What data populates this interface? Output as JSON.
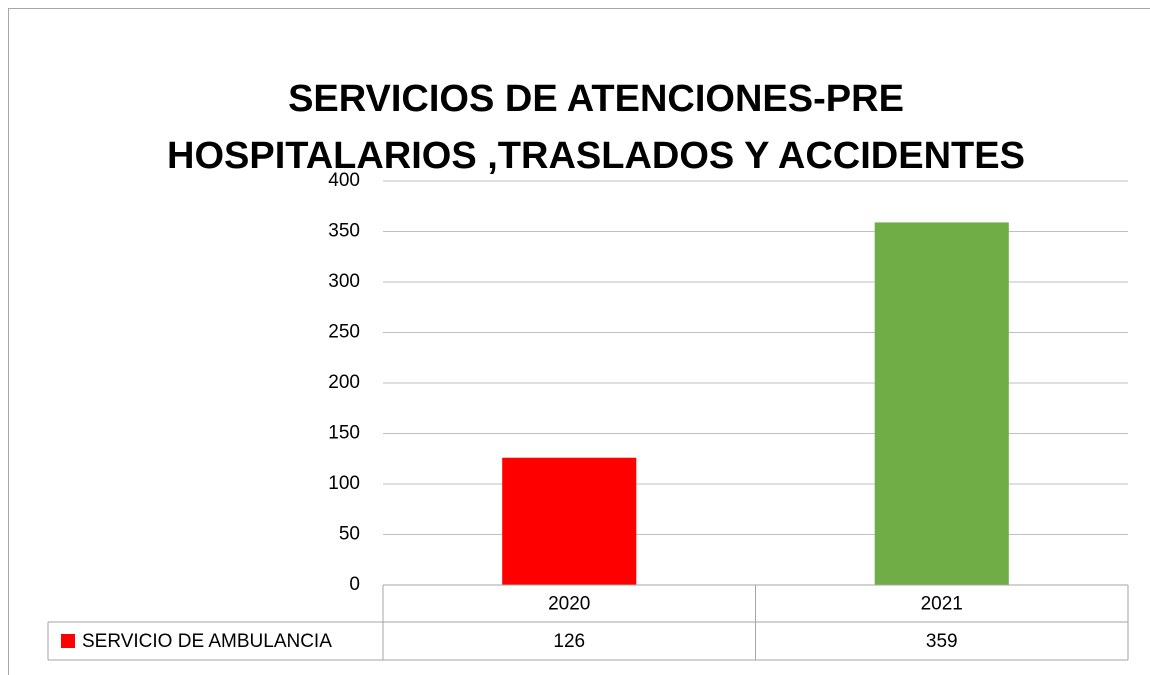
{
  "chart_data": {
    "type": "bar",
    "title": [
      "SERVICIOS DE ATENCIONES-PRE",
      "HOSPITALARIOS ,TRASLADOS Y ACCIDENTES"
    ],
    "categories": [
      "2020",
      "2021"
    ],
    "series": [
      {
        "name": "SERVICIO DE AMBULANCIA",
        "color": "#ff0000",
        "point_colors": [
          "#ff0000",
          "#70ad47"
        ],
        "values": [
          126,
          359
        ]
      }
    ],
    "ylim": [
      0,
      400
    ],
    "yticks": [
      0,
      50,
      100,
      150,
      200,
      250,
      300,
      350,
      400
    ],
    "grid": true,
    "data_table": true
  }
}
